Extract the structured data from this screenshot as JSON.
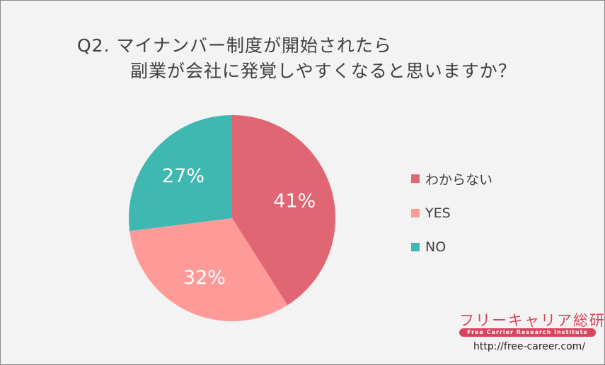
{
  "title": {
    "line1": "Q2. マイナンバー制度が開始されたら",
    "line2": "副業が会社に発覚しやすくなると思いますか？"
  },
  "chart_data": {
    "type": "pie",
    "categories": [
      "わからない",
      "YES",
      "NO"
    ],
    "values": [
      41,
      32,
      27
    ],
    "labels": [
      "41%",
      "32%",
      "27%"
    ],
    "colors": [
      "#e06673",
      "#fe9b99",
      "#3eb8b0"
    ],
    "legend_position": "right"
  },
  "legend": {
    "items": [
      {
        "label": "わからない",
        "color": "#e06673"
      },
      {
        "label": "YES",
        "color": "#fe9b99"
      },
      {
        "label": "NO",
        "color": "#3eb8b0"
      }
    ]
  },
  "brand": {
    "name": "フリーキャリア総研",
    "tagline": "Free Carrier Research Institute",
    "url": "http://free-career.com/"
  }
}
